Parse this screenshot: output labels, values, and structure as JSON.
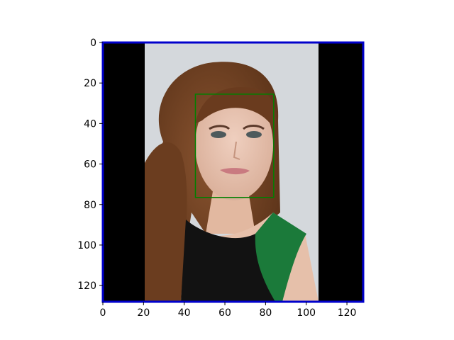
{
  "chart_data": {
    "type": "image",
    "xlim": [
      0,
      128
    ],
    "ylim": [
      128,
      0
    ],
    "x_ticks": [
      0,
      20,
      40,
      60,
      80,
      100,
      120
    ],
    "x_tick_labels": [
      "0",
      "20",
      "40",
      "60",
      "80",
      "100",
      "120"
    ],
    "y_ticks": [
      0,
      20,
      40,
      60,
      80,
      100,
      120
    ],
    "y_tick_labels": [
      "0",
      "20",
      "40",
      "60",
      "80",
      "100",
      "120"
    ],
    "image_extent": [
      20.5,
      106
    ],
    "bounding_boxes": [
      {
        "x0": 45.5,
        "y0": 25.5,
        "x1": 84,
        "y1": 76.5,
        "color": "#008000"
      }
    ],
    "frame_color": "#0000cc",
    "tick_color": "#000000"
  }
}
